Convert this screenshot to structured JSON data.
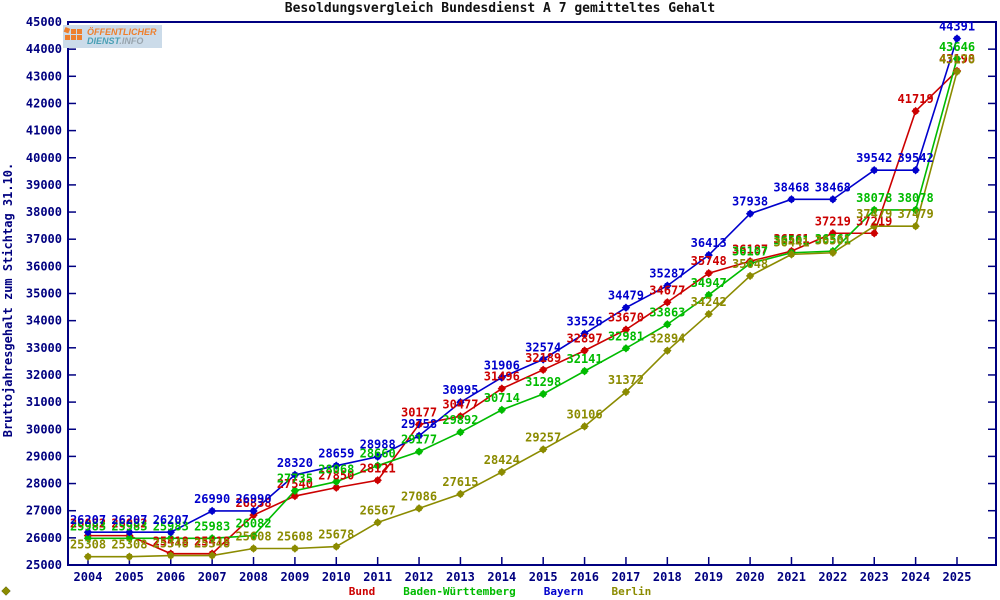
{
  "logo": {
    "line1": "ÖFFENTLICHER",
    "line2_a": "DIENST",
    "line2_b": ".INFO",
    "icon": "orange-squares-grid-icon",
    "colors": {
      "bg": "#cbdbe9",
      "orange": "#ee7f2d",
      "teal": "#4aa0b5",
      "gray": "#98a4ad"
    }
  },
  "chart_data": {
    "type": "line",
    "title": "Besoldungsvergleich Bundesdienst A 7 gemitteltes Gehalt",
    "ylabel": "Bruttojahresgehalt zum Stichtag 31.10.",
    "xlabel": "",
    "ylim": [
      25000,
      45000
    ],
    "ytick_step": 1000,
    "grid": "off",
    "legend_position": "bottom-center",
    "axis_color": "#000080",
    "point_labels": "above-each-point",
    "x_years": [
      2004,
      2005,
      2006,
      2007,
      2008,
      2009,
      2010,
      2011,
      2012,
      2013,
      2014,
      2015,
      2016,
      2017,
      2018,
      2019,
      2020,
      2021,
      2022,
      2023,
      2024,
      2025
    ],
    "series": [
      {
        "name": "Bund",
        "color": "#cc0000",
        "values": [
          26082,
          26082,
          25418,
          25418,
          26838,
          27540,
          27850,
          28121,
          30177,
          30477,
          31496,
          32189,
          32897,
          33670,
          34677,
          35748,
          36187,
          36561,
          37219,
          37219,
          41719,
          43198
        ]
      },
      {
        "name": "Baden-Württemberg",
        "color": "#00bb00",
        "values": [
          25983,
          25983,
          25983,
          25983,
          26082,
          27735,
          28068,
          28660,
          29177,
          29892,
          30714,
          31298,
          32141,
          32981,
          33863,
          34947,
          36107,
          36501,
          36561,
          38078,
          38078,
          43646
        ]
      },
      {
        "name": "Bayern",
        "color": "#0000cc",
        "values": [
          26207,
          26207,
          26207,
          26990,
          26990,
          28320,
          28659,
          28988,
          29758,
          30995,
          31906,
          32574,
          33526,
          34479,
          35287,
          36413,
          37938,
          38468,
          38468,
          39542,
          39542,
          44391
        ]
      },
      {
        "name": "Berlin",
        "color": "#8b8b00",
        "values": [
          25308,
          25308,
          25348,
          25348,
          25608,
          25608,
          25678,
          26567,
          27086,
          27615,
          28424,
          29257,
          30106,
          31372,
          32894,
          34242,
          35648,
          36441,
          36501,
          37479,
          37479,
          43170
        ]
      }
    ]
  }
}
